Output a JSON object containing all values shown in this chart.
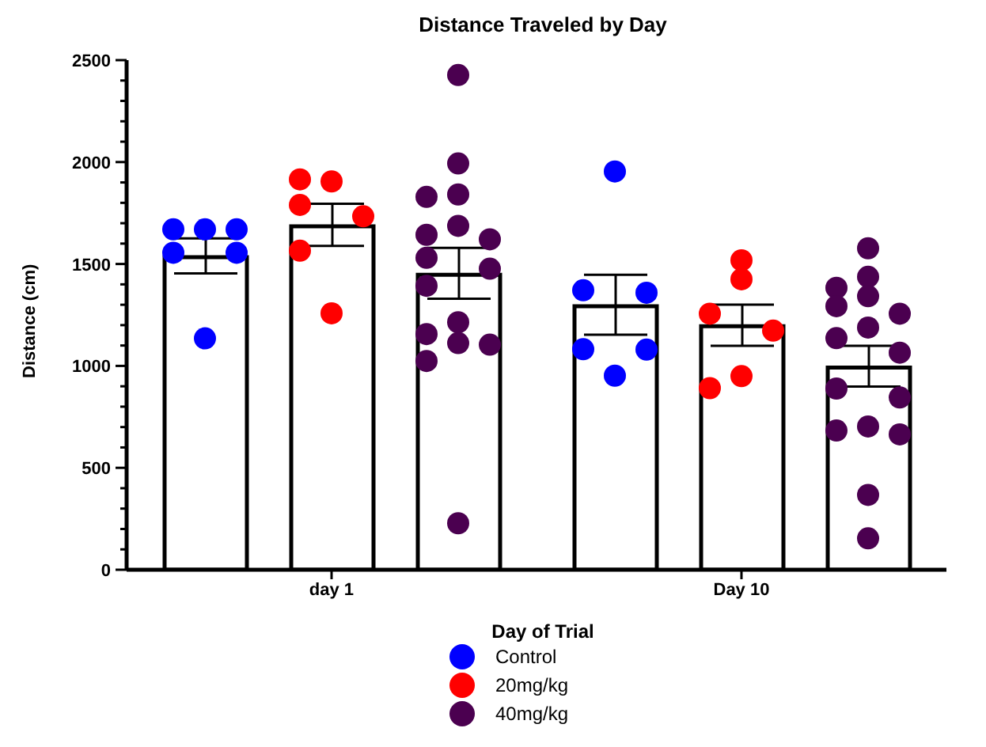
{
  "chart_data": {
    "type": "bar",
    "title": "Distance Traveled by Day",
    "xlabel": "Day of Trial",
    "ylabel": "Distance (cm)",
    "categories": [
      "day 1",
      "Day 10"
    ],
    "series": [
      {
        "color": "#ffffff",
        "values": [
          1533,
          1293
        ],
        "errors": [
          [
            1454,
            1626
          ],
          [
            1153,
            1447
          ]
        ]
      },
      {
        "color": "#ffffff",
        "values": [
          1685,
          1195
        ],
        "errors": [
          [
            1589,
            1795
          ],
          [
            1099,
            1300
          ]
        ]
      },
      {
        "color": "#ffffff",
        "values": [
          1447,
          992
        ],
        "errors": [
          [
            1330,
            1579
          ],
          [
            899,
            1099
          ]
        ]
      },
      {
        "type": "scatter",
        "name": "Control",
        "color": "#0000ff",
        "x": [
          "day 1",
          "day 1",
          "day 1",
          "day 1",
          "day 1",
          "day 1",
          "Day 10",
          "Day 10",
          "Day 10",
          "Day 10",
          "Day 10",
          "Day 10"
        ],
        "values": [
          1670,
          1670,
          1670,
          1555,
          1555,
          1135,
          1954,
          1371,
          1359,
          1082,
          1080,
          952
        ]
      },
      {
        "type": "scatter",
        "name": "20mg/kg",
        "color": "#ff0000",
        "x": [
          "day 1",
          "day 1",
          "day 1",
          "day 1",
          "day 1",
          "day 1",
          "Day 10",
          "Day 10",
          "Day 10",
          "Day 10",
          "Day 10",
          "Day 10"
        ],
        "values": [
          1905,
          1915,
          1790,
          1734,
          1565,
          1258,
          1518,
          1425,
          1256,
          1173,
          950,
          891
        ]
      },
      {
        "type": "scatter",
        "name": "40mg/kg",
        "color": "#4b0050",
        "x": [
          "day 1",
          "day 1",
          "day 1",
          "day 1",
          "day 1",
          "day 1",
          "day 1",
          "day 1",
          "day 1",
          "day 1",
          "day 1",
          "day 1",
          "day 1",
          "day 1",
          "day 1",
          "day 1",
          "Day 10",
          "Day 10",
          "Day 10",
          "Day 10",
          "Day 10",
          "Day 10",
          "Day 10",
          "Day 10",
          "Day 10",
          "Day 10",
          "Day 10",
          "Day 10",
          "Day 10",
          "Day 10",
          "Day 10",
          "Day 10"
        ],
        "values": [
          2427,
          1993,
          1841,
          1829,
          1687,
          1643,
          1621,
          1530,
          1477,
          1393,
          1214,
          1156,
          1112,
          1104,
          1024,
          228,
          1577,
          1437,
          1383,
          1342,
          1293,
          1256,
          1188,
          1136,
          1065,
          889,
          845,
          703,
          683,
          664,
          367,
          154
        ]
      }
    ],
    "ylim": [
      0,
      2500
    ],
    "yticks": [
      0,
      {
        "value": 100,
        "label": null
      },
      {
        "value": 200,
        "label": null
      },
      {
        "value": 300,
        "label": null
      },
      {
        "value": 400,
        "label": null
      },
      500,
      {
        "value": 600,
        "label": null
      },
      {
        "value": 700,
        "label": null
      },
      {
        "value": 800,
        "label": null
      },
      {
        "value": 900,
        "label": null
      },
      1000,
      {
        "value": 1100,
        "label": null
      },
      {
        "value": 1200,
        "label": null
      },
      {
        "value": 1300,
        "label": null
      },
      {
        "value": 1400,
        "label": null
      },
      1500,
      {
        "value": 1600,
        "label": null
      },
      {
        "value": 1700,
        "label": null
      },
      {
        "value": 1800,
        "label": null
      },
      {
        "value": 1900,
        "label": null
      },
      2000,
      {
        "value": 2100,
        "label": null
      },
      {
        "value": 2200,
        "label": null
      },
      {
        "value": 2300,
        "label": null
      },
      {
        "value": 2400,
        "label": null
      },
      2500
    ],
    "grid": false,
    "legend": "bottom",
    "marker": "circle"
  }
}
